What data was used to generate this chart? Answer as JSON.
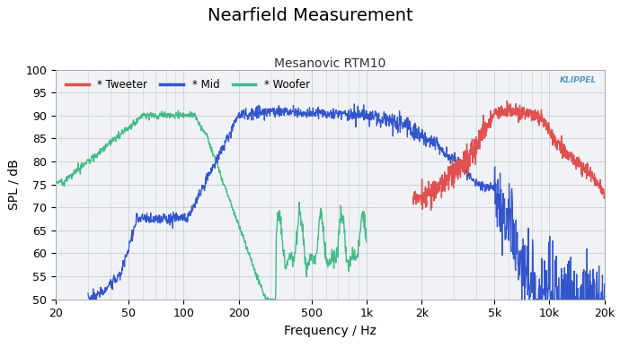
{
  "title": "Nearfield Measurement",
  "subtitle": "Mesanovic RTM10",
  "xlabel": "Frequency / Hz",
  "ylabel": "SPL / dB",
  "xlim_log": [
    20,
    20000
  ],
  "ylim": [
    50,
    100
  ],
  "yticks": [
    50,
    55,
    60,
    65,
    70,
    75,
    80,
    85,
    90,
    95,
    100
  ],
  "xticks": [
    20,
    50,
    100,
    200,
    500,
    1000,
    2000,
    5000,
    10000,
    20000
  ],
  "xticklabels": [
    "20",
    "50",
    "100",
    "200",
    "500",
    "1k",
    "2k",
    "5k",
    "10k",
    "20k"
  ],
  "tweeter_color": "#E05050",
  "mid_color": "#3355CC",
  "woofer_color": "#44BB88",
  "bg_color": "#F0F2F5",
  "grid_color": "#C8CDD4",
  "klippel_color": "#5599BB",
  "legend_labels": [
    "* Tweeter",
    "* Mid",
    "* Woofer"
  ],
  "title_fontsize": 14,
  "subtitle_fontsize": 10,
  "axis_label_fontsize": 10,
  "tick_fontsize": 9
}
